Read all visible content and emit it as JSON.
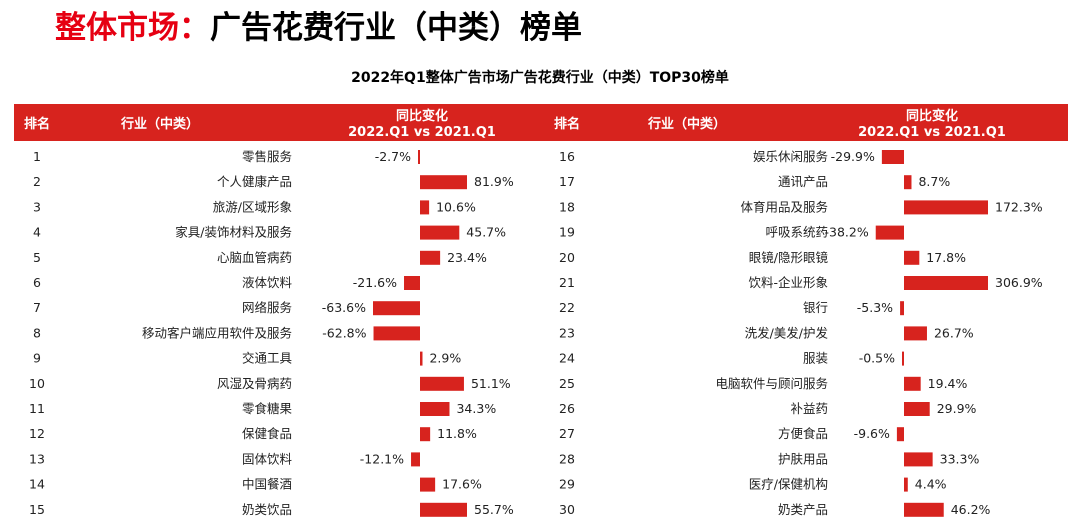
{
  "page_title": {
    "accent": "整体市场：",
    "rest": "广告花费行业（中类）榜单"
  },
  "colors": {
    "accent": "#e60012",
    "header_bg": "#d7231e",
    "bar": "#d7231e"
  },
  "chart_data": {
    "type": "bar",
    "title": "2022年Q1整体广告市场广告花费行业（中类）TOP30榜单",
    "columns": {
      "rank": "排名",
      "industry": "行业（中类）",
      "change_l1": "同比变化",
      "change_l2": "2022.Q1 vs 2021.Q1"
    },
    "unit": "%",
    "rows": [
      {
        "rank": "1",
        "industry": "零售服务",
        "value": -2.7
      },
      {
        "rank": "2",
        "industry": "个人健康产品",
        "value": 81.9
      },
      {
        "rank": "3",
        "industry": "旅游/区域形象",
        "value": 10.6
      },
      {
        "rank": "4",
        "industry": "家具/装饰材料及服务",
        "value": 45.7
      },
      {
        "rank": "5",
        "industry": "心脑血管病药",
        "value": 23.4
      },
      {
        "rank": "6",
        "industry": "液体饮料",
        "value": -21.6
      },
      {
        "rank": "7",
        "industry": "网络服务",
        "value": -63.6
      },
      {
        "rank": "8",
        "industry": "移动客户端应用软件及服务",
        "value": -62.8
      },
      {
        "rank": "9",
        "industry": "交通工具",
        "value": 2.9
      },
      {
        "rank": "10",
        "industry": "风湿及骨病药",
        "value": 51.1
      },
      {
        "rank": "11",
        "industry": "零食糖果",
        "value": 34.3
      },
      {
        "rank": "12",
        "industry": "保健食品",
        "value": 11.8
      },
      {
        "rank": "13",
        "industry": "固体饮料",
        "value": -12.1
      },
      {
        "rank": "14",
        "industry": "中国餐酒",
        "value": 17.6
      },
      {
        "rank": "15",
        "industry": "奶类饮品",
        "value": 55.7
      },
      {
        "rank": "16",
        "industry": "娱乐休闲服务",
        "value": -29.9
      },
      {
        "rank": "17",
        "industry": "通讯产品",
        "value": 8.7
      },
      {
        "rank": "18",
        "industry": "体育用品及服务",
        "value": 172.3
      },
      {
        "rank": "19",
        "industry": "呼吸系统药",
        "value": -38.2
      },
      {
        "rank": "20",
        "industry": "眼镜/隐形眼镜",
        "value": 17.8
      },
      {
        "rank": "21",
        "industry": "饮料-企业形象",
        "value": 306.9
      },
      {
        "rank": "22",
        "industry": "银行",
        "value": -5.3
      },
      {
        "rank": "23",
        "industry": "洗发/美发/护发",
        "value": 26.7
      },
      {
        "rank": "24",
        "industry": "服装",
        "value": -0.5
      },
      {
        "rank": "25",
        "industry": "电脑软件与顾问服务",
        "value": 19.4
      },
      {
        "rank": "26",
        "industry": "补益药",
        "value": 29.9
      },
      {
        "rank": "27",
        "industry": "方便食品",
        "value": -9.6
      },
      {
        "rank": "28",
        "industry": "护肤用品",
        "value": 33.3
      },
      {
        "rank": "29",
        "industry": "医疗/保健机构",
        "value": 4.4
      },
      {
        "rank": "30",
        "industry": "奶类产品",
        "value": 46.2
      }
    ]
  }
}
